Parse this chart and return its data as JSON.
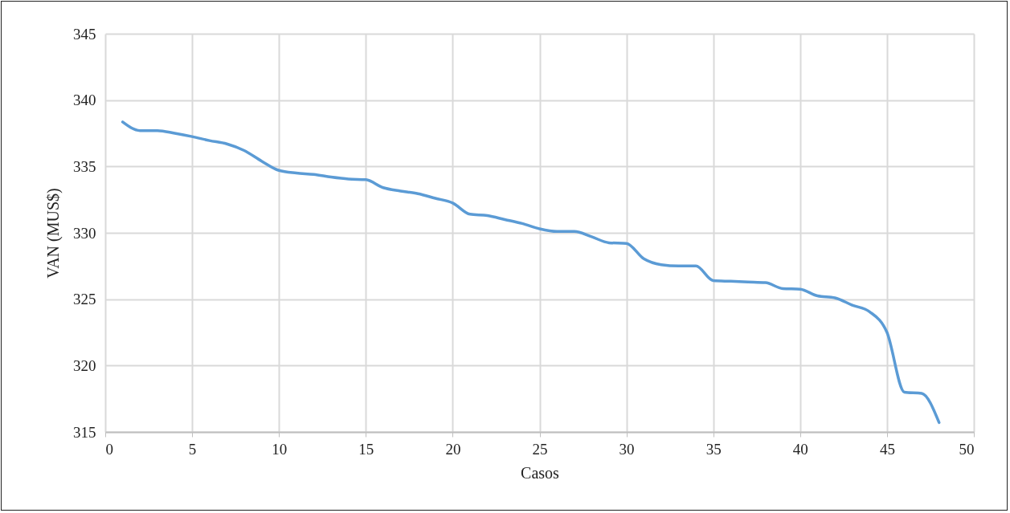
{
  "chart_data": {
    "type": "line",
    "xlabel": "Casos",
    "ylabel": "VAN (MUS$)",
    "x": [
      1,
      2,
      3,
      4,
      5,
      6,
      7,
      8,
      9,
      10,
      11,
      12,
      13,
      14,
      15,
      16,
      17,
      18,
      19,
      20,
      21,
      22,
      23,
      24,
      25,
      26,
      27,
      28,
      29,
      30,
      31,
      32,
      33,
      34,
      35,
      36,
      37,
      38,
      39,
      40,
      41,
      42,
      43,
      44,
      45,
      46,
      47,
      48
    ],
    "series": [
      {
        "color": "#5b9bd5",
        "values": [
          338.35,
          337.7,
          337.7,
          337.5,
          337.25,
          336.95,
          336.7,
          336.2,
          335.4,
          334.7,
          334.5,
          334.4,
          334.2,
          334.05,
          334.0,
          333.4,
          333.15,
          332.95,
          332.6,
          332.25,
          331.4,
          331.3,
          331.0,
          330.7,
          330.3,
          330.1,
          330.1,
          329.7,
          329.25,
          329.2,
          328.05,
          327.6,
          327.5,
          327.5,
          326.4,
          326.35,
          326.3,
          326.25,
          325.8,
          325.75,
          325.25,
          325.1,
          324.55,
          324.05,
          322.5,
          318.0,
          317.9,
          315.7
        ]
      }
    ],
    "xlim": [
      0,
      50
    ],
    "xticks": [
      0,
      5,
      10,
      15,
      20,
      25,
      30,
      35,
      40,
      45,
      50
    ],
    "ylim": [
      315,
      345
    ],
    "yticks": [
      315,
      320,
      325,
      330,
      335,
      340,
      345
    ],
    "grid": true,
    "marker": "none",
    "line_style": "solid"
  }
}
